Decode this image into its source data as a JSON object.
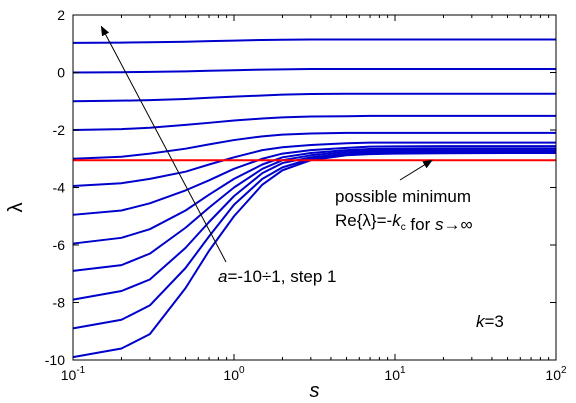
{
  "chart_data": {
    "type": "line",
    "xscale": "log",
    "xlim": [
      0.1,
      100
    ],
    "ylim": [
      -10,
      2
    ],
    "xlabel": "s",
    "ylabel": "λ",
    "xticks": [
      {
        "base": "10",
        "exp": "-1"
      },
      {
        "base": "10",
        "exp": "0"
      },
      {
        "base": "10",
        "exp": "1"
      },
      {
        "base": "10",
        "exp": "2"
      }
    ],
    "yticks": [
      "-10",
      "-8",
      "-6",
      "-4",
      "-2",
      "0",
      "2"
    ],
    "ytick_values": [
      -10,
      -8,
      -6,
      -4,
      -2,
      0,
      2
    ],
    "grid": false,
    "x": [
      0.1,
      0.2,
      0.3,
      0.5,
      0.7,
      1,
      1.5,
      2,
      3,
      5,
      7,
      10,
      20,
      50,
      100
    ],
    "series_color": "#0000cc",
    "series": [
      {
        "values": [
          -9.9,
          -9.6,
          -9.1,
          -7.5,
          -6.2,
          -5.0,
          -3.9,
          -3.4,
          -3.05,
          -2.88,
          -2.84,
          -2.82,
          -2.81,
          -2.8,
          -2.8
        ]
      },
      {
        "values": [
          -8.9,
          -8.6,
          -8.1,
          -6.8,
          -5.7,
          -4.6,
          -3.7,
          -3.3,
          -3.0,
          -2.86,
          -2.82,
          -2.8,
          -2.79,
          -2.79,
          -2.79
        ]
      },
      {
        "values": [
          -7.9,
          -7.6,
          -7.2,
          -6.1,
          -5.2,
          -4.3,
          -3.5,
          -3.15,
          -2.95,
          -2.82,
          -2.78,
          -2.76,
          -2.75,
          -2.75,
          -2.75
        ]
      },
      {
        "values": [
          -6.9,
          -6.7,
          -6.3,
          -5.4,
          -4.7,
          -4.0,
          -3.35,
          -3.05,
          -2.88,
          -2.76,
          -2.72,
          -2.7,
          -2.7,
          -2.7,
          -2.7
        ]
      },
      {
        "values": [
          -5.95,
          -5.75,
          -5.45,
          -4.8,
          -4.25,
          -3.7,
          -3.2,
          -2.95,
          -2.8,
          -2.7,
          -2.66,
          -2.65,
          -2.64,
          -2.64,
          -2.64
        ]
      },
      {
        "values": [
          -4.95,
          -4.8,
          -4.55,
          -4.1,
          -3.75,
          -3.35,
          -3.0,
          -2.82,
          -2.7,
          -2.62,
          -2.58,
          -2.57,
          -2.56,
          -2.56,
          -2.56
        ]
      },
      {
        "values": [
          -3.95,
          -3.85,
          -3.7,
          -3.45,
          -3.2,
          -2.95,
          -2.7,
          -2.6,
          -2.52,
          -2.46,
          -2.44,
          -2.44,
          -2.44,
          -2.44,
          -2.44
        ]
      },
      {
        "values": [
          -3.0,
          -2.93,
          -2.82,
          -2.65,
          -2.5,
          -2.35,
          -2.22,
          -2.16,
          -2.12,
          -2.1,
          -2.1,
          -2.1,
          -2.1,
          -2.1,
          -2.1
        ]
      },
      {
        "values": [
          -2.0,
          -1.97,
          -1.92,
          -1.82,
          -1.75,
          -1.67,
          -1.6,
          -1.56,
          -1.53,
          -1.52,
          -1.51,
          -1.51,
          -1.51,
          -1.51,
          -1.51
        ]
      },
      {
        "values": [
          -1.0,
          -0.98,
          -0.96,
          -0.92,
          -0.88,
          -0.84,
          -0.8,
          -0.77,
          -0.75,
          -0.74,
          -0.74,
          -0.74,
          -0.74,
          -0.74,
          -0.74
        ]
      },
      {
        "values": [
          0.0,
          0.01,
          0.02,
          0.04,
          0.06,
          0.08,
          0.1,
          0.11,
          0.12,
          0.12,
          0.12,
          0.12,
          0.12,
          0.12,
          0.12
        ]
      },
      {
        "values": [
          1.03,
          1.04,
          1.05,
          1.07,
          1.09,
          1.11,
          1.13,
          1.14,
          1.15,
          1.15,
          1.15,
          1.15,
          1.15,
          1.15,
          1.15
        ]
      }
    ],
    "reference_line": {
      "y": -3.05,
      "color": "#ff0000"
    },
    "annotations": {
      "family": {
        "label_parts": [
          {
            "text": "a",
            "italic": true
          },
          {
            "text": "=-10÷1, step 1",
            "italic": false
          }
        ],
        "arrow_to": {
          "x": 0.15,
          "y": 1.6
        }
      },
      "minimum": {
        "line1": "possible minimum",
        "line2_parts": [
          {
            "text": "Re{λ}=-",
            "italic": false
          },
          {
            "text": "k",
            "italic": true
          },
          {
            "text": "c",
            "italic": false,
            "sub": true
          },
          {
            "text": " for ",
            "italic": false
          },
          {
            "text": "s",
            "italic": true
          },
          {
            "text": "→∞",
            "italic": false
          }
        ],
        "arrow_to": {
          "x": 17,
          "y": -3.05
        }
      },
      "k_label_parts": [
        {
          "text": "k",
          "italic": true
        },
        {
          "text": "=3",
          "italic": false
        }
      ]
    }
  }
}
